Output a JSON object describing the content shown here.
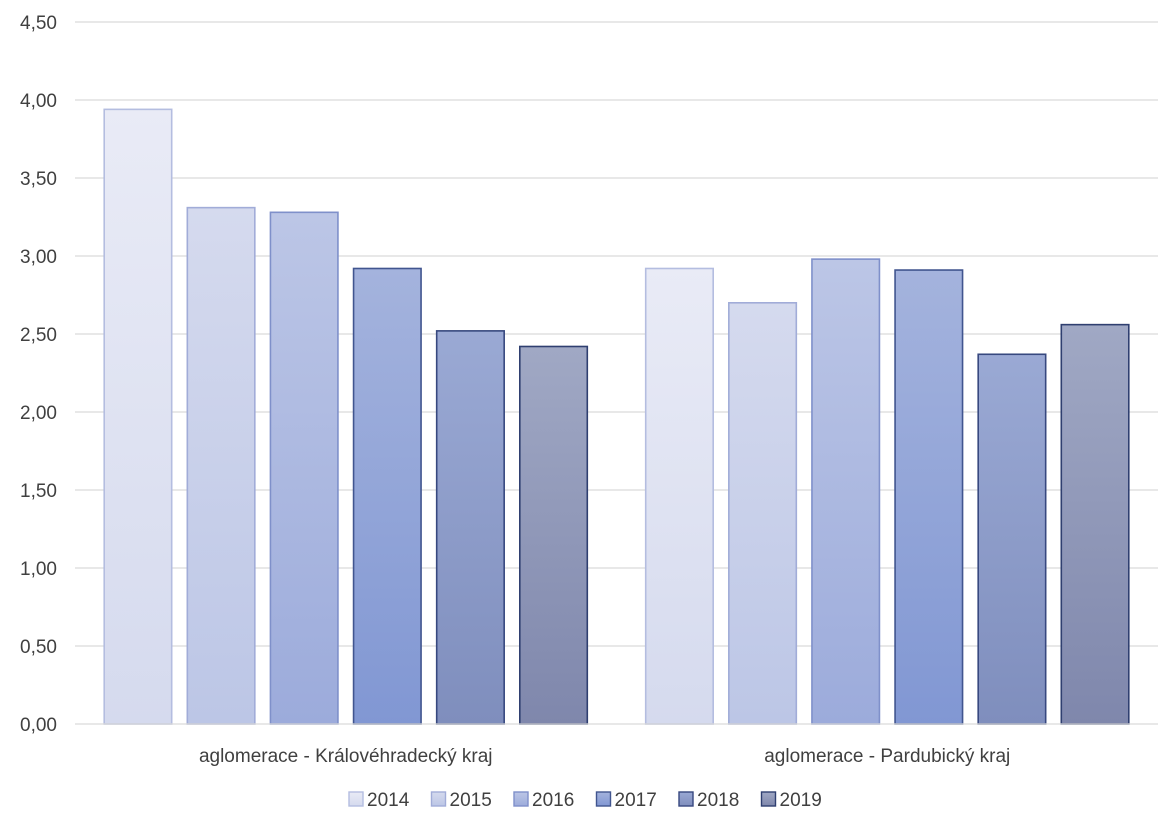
{
  "chart_data": {
    "type": "bar",
    "title": "",
    "xlabel": "",
    "ylabel": "",
    "categories": [
      "aglomerace - Královéhradecký kraj",
      "aglomerace - Pardubický kraj"
    ],
    "series": [
      {
        "name": "2014",
        "values": [
          3.94,
          2.92
        ],
        "fill_top": "#e9ebf6",
        "fill_bottom": "#d5daee",
        "stroke": "#b4bde0"
      },
      {
        "name": "2015",
        "values": [
          3.31,
          2.7
        ],
        "fill_top": "#d5daee",
        "fill_bottom": "#bcc6e6",
        "stroke": "#a1acd8"
      },
      {
        "name": "2016",
        "values": [
          3.28,
          2.98
        ],
        "fill_top": "#bcc6e6",
        "fill_bottom": "#9cabdb",
        "stroke": "#7f90ca"
      },
      {
        "name": "2017",
        "values": [
          2.92,
          2.91
        ],
        "fill_top": "#a4b3dd",
        "fill_bottom": "#8197d3",
        "stroke": "#41558f"
      },
      {
        "name": "2018",
        "values": [
          2.52,
          2.37
        ],
        "fill_top": "#9aa9d4",
        "fill_bottom": "#7f8ebd",
        "stroke": "#37487f"
      },
      {
        "name": "2019",
        "values": [
          2.42,
          2.56
        ],
        "fill_top": "#a0a8c4",
        "fill_bottom": "#7f87ac",
        "stroke": "#2f3f70"
      }
    ],
    "ylim": [
      0,
      4.5
    ],
    "yticks": [
      "0,00",
      "0,50",
      "1,00",
      "1,50",
      "2,00",
      "2,50",
      "3,00",
      "3,50",
      "4,00",
      "4,50"
    ],
    "grid": true,
    "legend_position": "bottom"
  }
}
